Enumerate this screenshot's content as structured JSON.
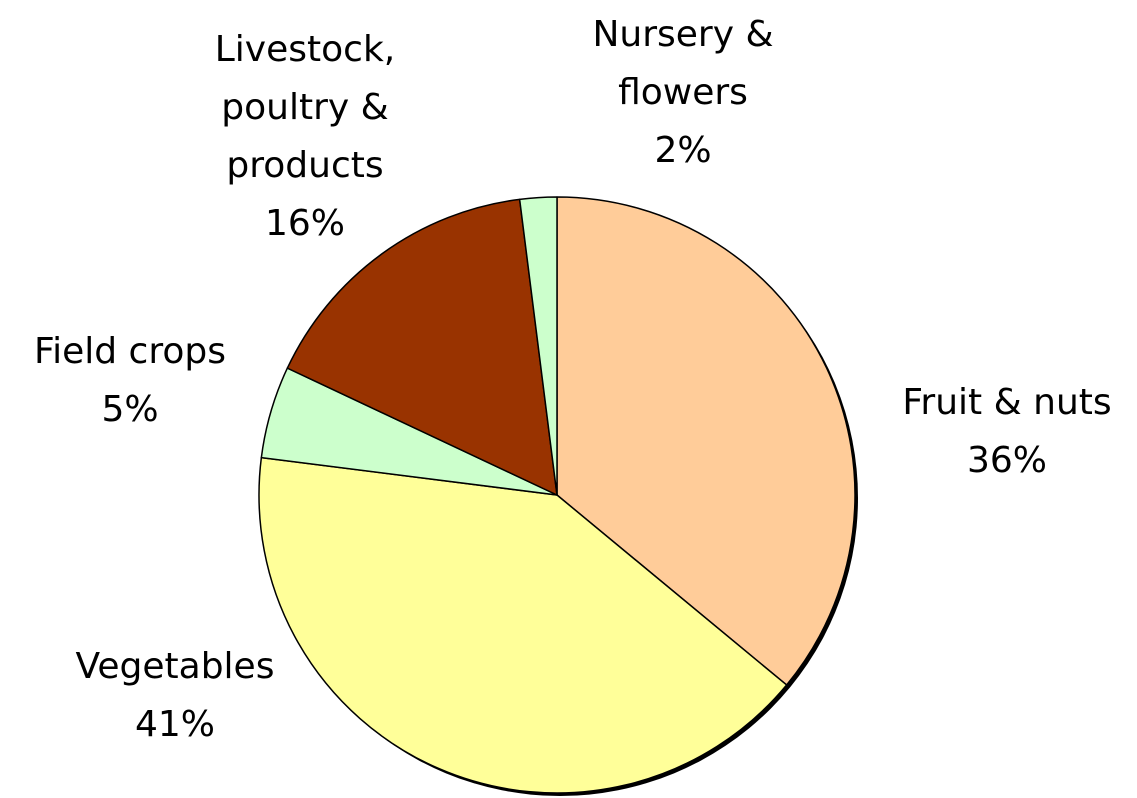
{
  "chart_data": {
    "type": "pie",
    "categories": [
      "Fruit & nuts",
      "Vegetables",
      "Field crops",
      "Livestock, poultry & products",
      "Nursery & flowers"
    ],
    "values": [
      36,
      41,
      5,
      16,
      2
    ],
    "value_labels": [
      "36%",
      "41%",
      "5%",
      "16%",
      "2%"
    ],
    "colors": [
      "#ffcc99",
      "#ffff99",
      "#ccffcc",
      "#993300",
      "#ccffcc"
    ]
  }
}
